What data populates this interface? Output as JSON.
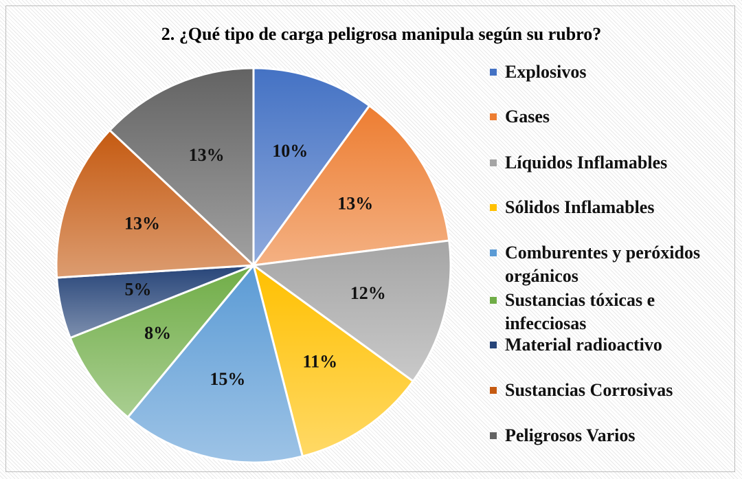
{
  "chart_data": {
    "type": "pie",
    "title": "2. ¿Qué tipo de carga peligrosa manipula según su rubro?",
    "categories": [
      "Explosivos",
      "Gases",
      "Líquidos Inflamables",
      "Sólidos Inflamables",
      "Comburentes y peróxidos orgánicos",
      "Sustancias tóxicas e infecciosas",
      "Material radioactivo",
      "Sustancias Corrosivas",
      "Peligrosos Varios"
    ],
    "values": [
      10,
      13,
      12,
      11,
      15,
      8,
      5,
      13,
      13
    ],
    "value_labels": [
      "10%",
      "13%",
      "12%",
      "11%",
      "15%",
      "8%",
      "5%",
      "13%",
      "13%"
    ],
    "colors": [
      "#4472c4",
      "#ed7d31",
      "#a5a5a5",
      "#ffc000",
      "#5b9bd5",
      "#70ad47",
      "#264478",
      "#c55a11",
      "#636363"
    ],
    "legend": "right"
  }
}
